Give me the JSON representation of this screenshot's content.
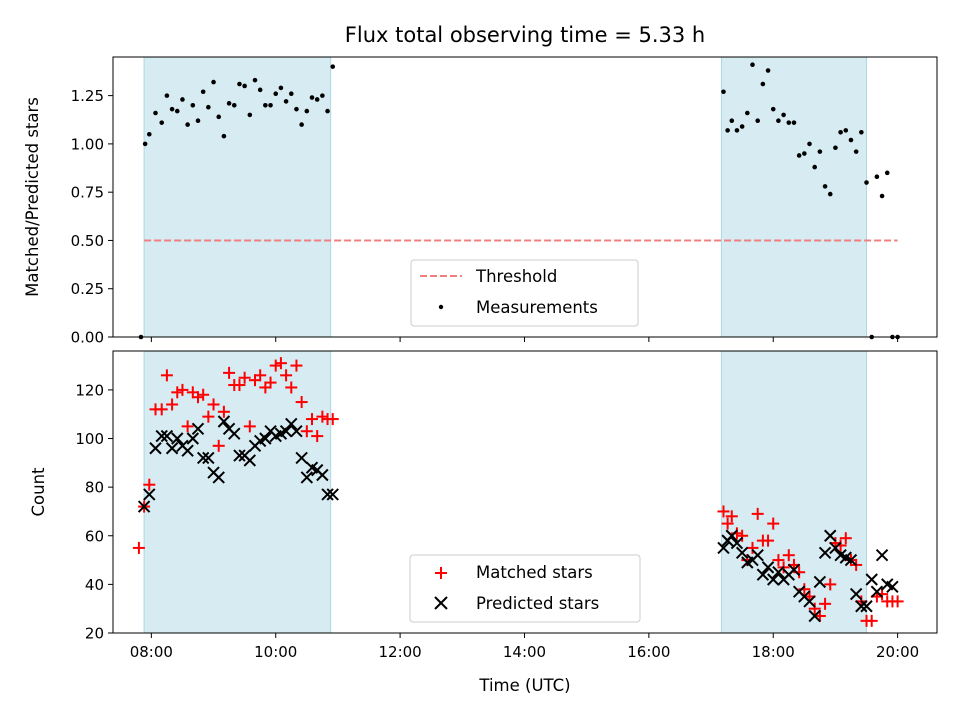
{
  "chart_data": [
    {
      "type": "scatter",
      "title": "Flux total observing time = 5.33 h",
      "ylabel": "Matched/Predicted stars",
      "xlabel": "",
      "xlim": [
        "07:23",
        "20:38"
      ],
      "ylim": [
        0,
        1.45
      ],
      "yticks": [
        "0.00",
        "0.25",
        "0.50",
        "0.75",
        "1.00",
        "1.25"
      ],
      "shaded_intervals": [
        [
          "07:53",
          "10:53"
        ],
        [
          "17:10",
          "19:30"
        ]
      ],
      "legend": {
        "position": "lower center",
        "entries": [
          "Threshold",
          "Measurements"
        ]
      },
      "threshold": {
        "name": "Threshold",
        "y": 0.5,
        "x_range": [
          "07:53",
          "20:00"
        ],
        "color": "#f08080"
      },
      "series": [
        {
          "name": "Measurements",
          "color": "#000000",
          "x": [
            "07:50",
            "07:54",
            "07:58",
            "08:04",
            "08:10",
            "08:15",
            "08:20",
            "08:25",
            "08:30",
            "08:35",
            "08:40",
            "08:45",
            "08:50",
            "08:55",
            "09:00",
            "09:05",
            "09:10",
            "09:15",
            "09:20",
            "09:25",
            "09:30",
            "09:35",
            "09:40",
            "09:45",
            "09:50",
            "09:55",
            "10:00",
            "10:05",
            "10:10",
            "10:15",
            "10:20",
            "10:25",
            "10:30",
            "10:35",
            "10:40",
            "10:45",
            "10:50",
            "10:55",
            "17:12",
            "17:16",
            "17:20",
            "17:25",
            "17:30",
            "17:35",
            "17:40",
            "17:45",
            "17:50",
            "17:55",
            "18:00",
            "18:05",
            "18:10",
            "18:15",
            "18:20",
            "18:25",
            "18:30",
            "18:35",
            "18:40",
            "18:45",
            "18:50",
            "18:55",
            "19:00",
            "19:05",
            "19:10",
            "19:15",
            "19:20",
            "19:25",
            "19:30",
            "19:35",
            "19:40",
            "19:45",
            "19:50",
            "19:55",
            "20:00"
          ],
          "y": [
            0.0,
            1.0,
            1.05,
            1.16,
            1.11,
            1.25,
            1.18,
            1.17,
            1.23,
            1.1,
            1.2,
            1.12,
            1.27,
            1.19,
            1.32,
            1.14,
            1.04,
            1.21,
            1.2,
            1.31,
            1.3,
            1.15,
            1.33,
            1.28,
            1.2,
            1.2,
            1.26,
            1.29,
            1.22,
            1.26,
            1.18,
            1.1,
            1.17,
            1.24,
            1.23,
            1.25,
            1.17,
            1.4,
            1.27,
            1.07,
            1.12,
            1.07,
            1.09,
            1.16,
            1.41,
            1.12,
            1.31,
            1.38,
            1.18,
            1.12,
            1.15,
            1.11,
            1.11,
            0.94,
            0.95,
            1.0,
            0.88,
            0.96,
            0.78,
            0.74,
            0.98,
            1.06,
            1.07,
            1.02,
            0.96,
            1.06,
            0.8,
            0.0,
            0.83,
            0.73,
            0.85,
            0.0,
            0.0
          ]
        }
      ]
    },
    {
      "type": "scatter",
      "title": "",
      "xlabel": "Time (UTC)",
      "ylabel": "Count",
      "xlim": [
        "07:23",
        "20:38"
      ],
      "ylim": [
        20,
        136
      ],
      "xticks": [
        "08:00",
        "10:00",
        "12:00",
        "14:00",
        "16:00",
        "18:00",
        "20:00"
      ],
      "yticks": [
        "20",
        "40",
        "60",
        "80",
        "100",
        "120"
      ],
      "shaded_intervals": [
        [
          "07:53",
          "10:53"
        ],
        [
          "17:10",
          "19:30"
        ]
      ],
      "legend": {
        "position": "lower center",
        "entries": [
          "Matched stars",
          "Predicted stars"
        ]
      },
      "series": [
        {
          "name": "Matched stars",
          "marker": "+",
          "color": "#ff0000",
          "x": [
            "07:48",
            "07:53",
            "07:58",
            "08:04",
            "08:10",
            "08:15",
            "08:20",
            "08:25",
            "08:30",
            "08:35",
            "08:40",
            "08:45",
            "08:50",
            "08:55",
            "09:00",
            "09:05",
            "09:10",
            "09:15",
            "09:20",
            "09:25",
            "09:30",
            "09:35",
            "09:40",
            "09:45",
            "09:50",
            "09:55",
            "10:00",
            "10:05",
            "10:10",
            "10:15",
            "10:20",
            "10:25",
            "10:30",
            "10:35",
            "10:40",
            "10:45",
            "10:50",
            "10:55",
            "17:12",
            "17:16",
            "17:20",
            "17:25",
            "17:30",
            "17:35",
            "17:40",
            "17:45",
            "17:50",
            "17:55",
            "18:00",
            "18:05",
            "18:10",
            "18:15",
            "18:20",
            "18:25",
            "18:30",
            "18:35",
            "18:40",
            "18:45",
            "18:50",
            "18:55",
            "19:00",
            "19:05",
            "19:10",
            "19:15",
            "19:20",
            "19:25",
            "19:30",
            "19:35",
            "19:40",
            "19:45",
            "19:50",
            "19:55",
            "20:00"
          ],
          "y": [
            55,
            72,
            81,
            112,
            112,
            126,
            114,
            119,
            120,
            105,
            119,
            117,
            118,
            109,
            114,
            97,
            111,
            127,
            122,
            122,
            125,
            105,
            124,
            126,
            121,
            123,
            130,
            131,
            126,
            121,
            130,
            115,
            103,
            108,
            101,
            109,
            108,
            108,
            70,
            65,
            68,
            61,
            60,
            50,
            55,
            69,
            58,
            58,
            65,
            50,
            47,
            52,
            48,
            45,
            38,
            35,
            30,
            27,
            32,
            40,
            57,
            56,
            59,
            50,
            48,
            33,
            25,
            25,
            35,
            36,
            33,
            33,
            33
          ]
        },
        {
          "name": "Predicted stars",
          "marker": "x",
          "color": "#000000",
          "x": [
            "07:53",
            "07:58",
            "08:04",
            "08:10",
            "08:15",
            "08:20",
            "08:25",
            "08:30",
            "08:35",
            "08:40",
            "08:45",
            "08:50",
            "08:55",
            "09:00",
            "09:05",
            "09:10",
            "09:15",
            "09:20",
            "09:25",
            "09:30",
            "09:35",
            "09:40",
            "09:45",
            "09:50",
            "09:55",
            "10:00",
            "10:05",
            "10:10",
            "10:15",
            "10:20",
            "10:25",
            "10:30",
            "10:35",
            "10:40",
            "10:45",
            "10:50",
            "10:55",
            "17:12",
            "17:16",
            "17:20",
            "17:25",
            "17:30",
            "17:35",
            "17:40",
            "17:45",
            "17:50",
            "17:55",
            "18:00",
            "18:05",
            "18:10",
            "18:15",
            "18:20",
            "18:25",
            "18:30",
            "18:35",
            "18:40",
            "18:45",
            "18:50",
            "18:55",
            "19:00",
            "19:05",
            "19:10",
            "19:15",
            "19:20",
            "19:25",
            "19:30",
            "19:35",
            "19:40",
            "19:45",
            "19:50",
            "19:55"
          ],
          "y": [
            72,
            77,
            96,
            101,
            101,
            96,
            100,
            97,
            95,
            100,
            104,
            92,
            92,
            86,
            84,
            107,
            104,
            102,
            93,
            93,
            91,
            97,
            99,
            100,
            103,
            101,
            102,
            103,
            106,
            103,
            92,
            84,
            88,
            87,
            85,
            77,
            77,
            55,
            58,
            60,
            57,
            53,
            49,
            50,
            52,
            44,
            47,
            42,
            45,
            42,
            44,
            46,
            37,
            35,
            33,
            27,
            41,
            53,
            60,
            55,
            52,
            51,
            50,
            36,
            31,
            31,
            42,
            37,
            52,
            40,
            39
          ]
        }
      ]
    }
  ]
}
